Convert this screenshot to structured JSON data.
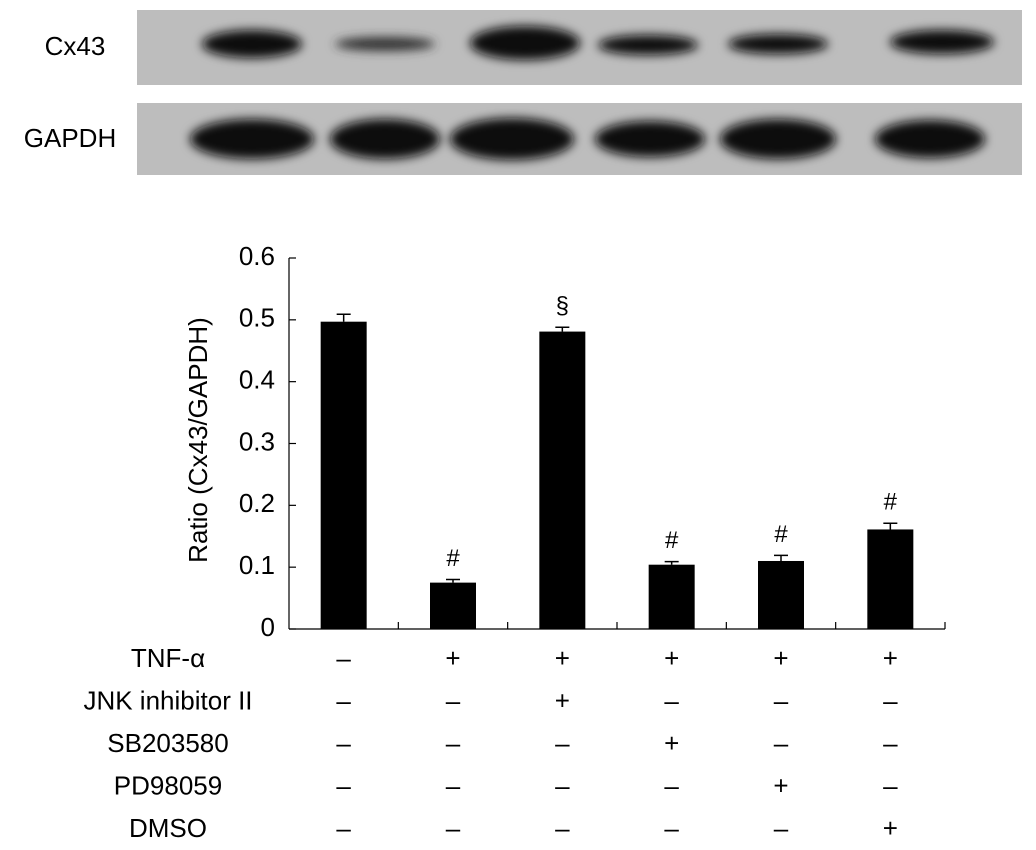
{
  "blot": {
    "rows": [
      "Cx43",
      "GAPDH"
    ]
  },
  "chart_data": {
    "type": "bar",
    "ylabel": "Ratio (Cx43/GAPDH)",
    "categories": [
      null,
      null,
      null,
      null,
      null,
      null
    ],
    "values": [
      0.497,
      0.075,
      0.481,
      0.104,
      0.11,
      0.161
    ],
    "errors": [
      0.012,
      0.005,
      0.007,
      0.005,
      0.009,
      0.01
    ],
    "annotations": [
      null,
      "#",
      "§",
      "#",
      "#",
      "#"
    ],
    "color": "#000000",
    "ylim": [
      0,
      0.6
    ],
    "yticks": [
      0,
      0.1,
      0.2,
      0.3,
      0.4,
      0.5,
      0.6
    ],
    "treatments": [
      {
        "name": "TNF-α",
        "signs": [
          "–",
          "+",
          "+",
          "+",
          "+",
          "+"
        ]
      },
      {
        "name": "JNK inhibitor II",
        "signs": [
          "–",
          "–",
          "+",
          "–",
          "–",
          "–"
        ]
      },
      {
        "name": "SB203580",
        "signs": [
          "–",
          "–",
          "–",
          "+",
          "–",
          "–"
        ]
      },
      {
        "name": "PD98059",
        "signs": [
          "–",
          "–",
          "–",
          "–",
          "+",
          "–"
        ]
      },
      {
        "name": "DMSO",
        "signs": [
          "–",
          "–",
          "–",
          "–",
          "–",
          "+"
        ]
      }
    ]
  }
}
